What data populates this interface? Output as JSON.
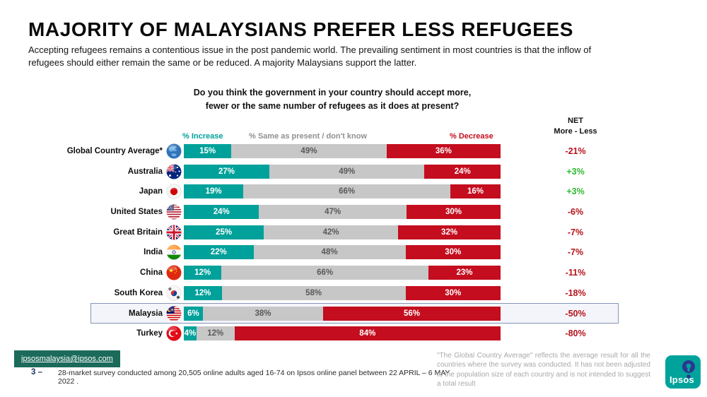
{
  "header": {
    "title": "MAJORITY OF MALAYSIANS PREFER LESS REFUGEES",
    "subtitle": "Accepting refugees remains a contentious issue in the post pandemic world. The prevailing sentiment in most countries is that the inflow of refugees should either remain the same or be reduced. A majority Malaysians support the latter."
  },
  "question": {
    "line1": "Do you think the government in your country should accept more,",
    "line2": "fewer or the same number of refugees as it does at present?"
  },
  "legend": {
    "increase": "% Increase",
    "same": "% Same as present / don't know",
    "decrease": "% Decrease",
    "net_line1": "NET",
    "net_line2": "More - Less"
  },
  "chart_data": {
    "type": "bar",
    "stacked": true,
    "orientation": "horizontal",
    "title": "Do you think the government in your country should accept more, fewer or the same number of refugees as it does at present?",
    "value_suffix": "%",
    "categories": [
      "Global Country Average*",
      "Australia",
      "Japan",
      "United States",
      "Great Britain",
      "India",
      "China",
      "South Korea",
      "Malaysia",
      "Turkey"
    ],
    "flag_icons": [
      "globe-flag-icon",
      "australia-flag-icon",
      "japan-flag-icon",
      "usa-flag-icon",
      "uk-flag-icon",
      "india-flag-icon",
      "china-flag-icon",
      "south-korea-flag-icon",
      "malaysia-flag-icon",
      "turkey-flag-icon"
    ],
    "series": [
      {
        "name": "% Increase",
        "color": "#00A19A",
        "values": [
          15,
          27,
          19,
          24,
          25,
          22,
          12,
          12,
          6,
          4
        ]
      },
      {
        "name": "% Same as present / don't know",
        "color": "#C7C7C7",
        "values": [
          49,
          49,
          66,
          47,
          42,
          48,
          66,
          58,
          38,
          12
        ]
      },
      {
        "name": "% Decrease",
        "color": "#C40D1E",
        "values": [
          36,
          24,
          16,
          30,
          32,
          30,
          23,
          30,
          56,
          84
        ]
      }
    ],
    "net_column": {
      "header": "NET More - Less",
      "values": [
        "-21%",
        "+3%",
        "+3%",
        "-6%",
        "-7%",
        "-7%",
        "-11%",
        "-18%",
        "-50%",
        "-80%"
      ],
      "positive_color": "#2EB82E",
      "negative_color": "#B5121B"
    },
    "highlighted_category": "Malaysia",
    "legend_position": "top",
    "grid": false
  },
  "footer": {
    "email": "ipsosmalaysia@ipsos.com",
    "page_number": "3 –",
    "survey_note": "28-market survey conducted among 20,505 online adults aged 16-74  on Ipsos online panel between 22 APRIL – 6 MAY 2022 .",
    "average_note": "\"The Global Country Average\" reflects the average result for all the countries where the survey was conducted. It has not been adjusted to the population size of each country and is not intended to suggest a total result",
    "brand": "Ipsos"
  },
  "colors": {
    "increase": "#00A19A",
    "same": "#C7C7C7",
    "decrease": "#C40D1E",
    "net_positive": "#2EB82E",
    "net_negative": "#B5121B",
    "highlight_border": "#8496B5",
    "email_bg": "#1B6A5A",
    "brand_teal": "#00A39B",
    "brand_navy": "#2B3690"
  }
}
